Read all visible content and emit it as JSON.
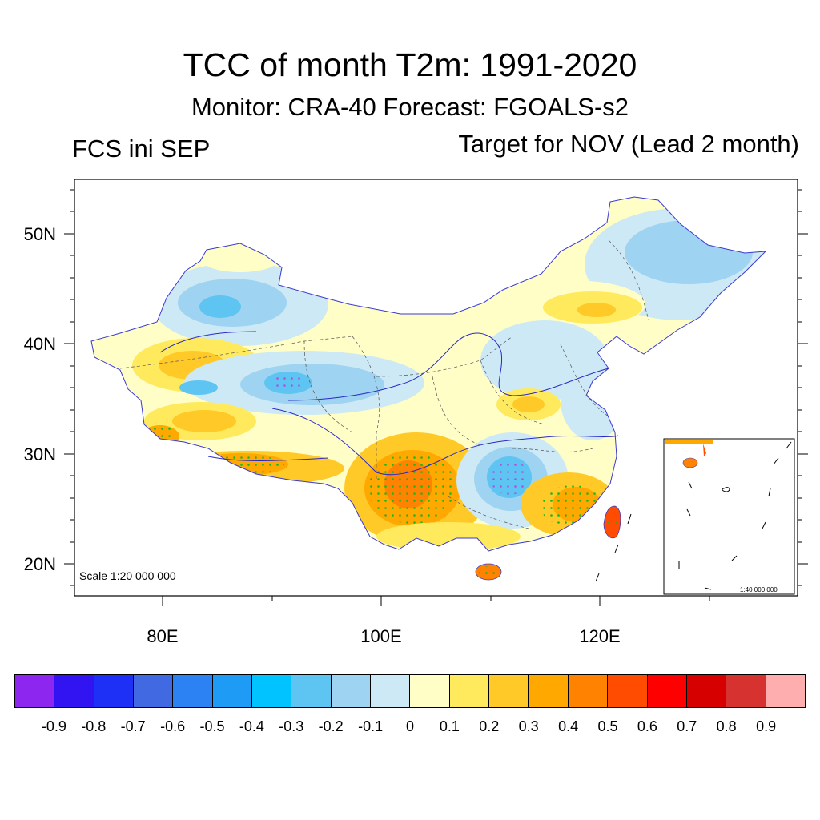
{
  "title": "TCC of month T2m: 1991-2020",
  "subtitle": "Monitor: CRA-40   Forecast: FGOALS-s2",
  "left_label": "FCS ini SEP",
  "right_label": "Target for NOV (Lead 2 month)",
  "scale_main": "Scale 1:20 000 000",
  "scale_inset": "1:40 000 000",
  "axes": {
    "y_labels": [
      "50N",
      "40N",
      "30N",
      "20N"
    ],
    "x_labels": [
      "80E",
      "100E",
      "120E"
    ]
  },
  "colorbar": {
    "colors": [
      "#8d27f0",
      "#3214f2",
      "#1e30f5",
      "#4169e1",
      "#2c82f2",
      "#1e9bf5",
      "#00c3ff",
      "#5ec4f2",
      "#9ed3f2",
      "#cde9f6",
      "#fffec7",
      "#ffea5d",
      "#ffc927",
      "#ffa800",
      "#ff8200",
      "#ff4c00",
      "#ff0000",
      "#d70000",
      "#d63330",
      "#ffaeb0"
    ],
    "ticks": [
      "-0.9",
      "-0.8",
      "-0.7",
      "-0.6",
      "-0.5",
      "-0.4",
      "-0.3",
      "-0.2",
      "-0.1",
      "0",
      "0.1",
      "0.2",
      "0.3",
      "0.4",
      "0.5",
      "0.6",
      "0.7",
      "0.8",
      "0.9"
    ]
  }
}
